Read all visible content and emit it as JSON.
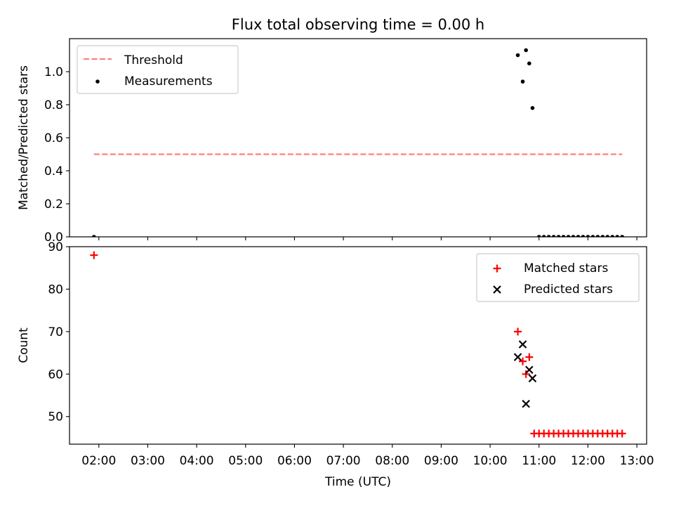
{
  "figure": {
    "title": "Flux total observing time = 0.00 h"
  },
  "chart_data": [
    {
      "type": "scatter",
      "ylabel": "Matched/Predicted stars",
      "xlabel": "",
      "xlim": [
        "01:24",
        "13:12"
      ],
      "ylim": [
        0,
        1.2
      ],
      "yticks": [
        0.0,
        0.2,
        0.4,
        0.6,
        0.8,
        1.0
      ],
      "ytick_labels": [
        "0.0",
        "0.2",
        "0.4",
        "0.6",
        "0.8",
        "1.0"
      ],
      "grid": false,
      "legend_position": "upper left",
      "threshold": {
        "name": "Threshold",
        "value": 0.5,
        "x_start": "01:54",
        "x_end": "12:42",
        "color": "#ff7f7f",
        "style": "dashed"
      },
      "series": [
        {
          "name": "Measurements",
          "marker": "dot",
          "color": "#000000",
          "points": [
            {
              "x": "01:54",
              "y": 0.0
            },
            {
              "x": "10:34",
              "y": 1.1
            },
            {
              "x": "10:40",
              "y": 0.94
            },
            {
              "x": "10:44",
              "y": 1.13
            },
            {
              "x": "10:48",
              "y": 1.05
            },
            {
              "x": "10:52",
              "y": 0.78
            },
            {
              "x": "11:00",
              "y": 0.0
            },
            {
              "x": "11:06",
              "y": 0.0
            },
            {
              "x": "11:12",
              "y": 0.0
            },
            {
              "x": "11:18",
              "y": 0.0
            },
            {
              "x": "11:24",
              "y": 0.0
            },
            {
              "x": "11:30",
              "y": 0.0
            },
            {
              "x": "11:36",
              "y": 0.0
            },
            {
              "x": "11:42",
              "y": 0.0
            },
            {
              "x": "11:48",
              "y": 0.0
            },
            {
              "x": "11:54",
              "y": 0.0
            },
            {
              "x": "12:00",
              "y": 0.0
            },
            {
              "x": "12:06",
              "y": 0.0
            },
            {
              "x": "12:12",
              "y": 0.0
            },
            {
              "x": "12:18",
              "y": 0.0
            },
            {
              "x": "12:24",
              "y": 0.0
            },
            {
              "x": "12:30",
              "y": 0.0
            },
            {
              "x": "12:36",
              "y": 0.0
            },
            {
              "x": "12:42",
              "y": 0.0
            }
          ]
        }
      ]
    },
    {
      "type": "scatter",
      "ylabel": "Count",
      "xlabel": "Time (UTC)",
      "xlim": [
        "01:24",
        "13:12"
      ],
      "ylim": [
        43.5,
        90
      ],
      "yticks": [
        50,
        60,
        70,
        80,
        90
      ],
      "ytick_labels": [
        "50",
        "60",
        "70",
        "80",
        "90"
      ],
      "xticks": [
        "02:00",
        "03:00",
        "04:00",
        "05:00",
        "06:00",
        "07:00",
        "08:00",
        "09:00",
        "10:00",
        "11:00",
        "12:00",
        "13:00"
      ],
      "xtick_labels": [
        "02:00",
        "03:00",
        "04:00",
        "05:00",
        "06:00",
        "07:00",
        "08:00",
        "09:00",
        "10:00",
        "11:00",
        "12:00",
        "13:00"
      ],
      "grid": false,
      "legend_position": "upper right",
      "series": [
        {
          "name": "Matched stars",
          "marker": "plus",
          "color": "#ff0000",
          "points": [
            {
              "x": "01:54",
              "y": 88
            },
            {
              "x": "10:34",
              "y": 70
            },
            {
              "x": "10:40",
              "y": 63
            },
            {
              "x": "10:44",
              "y": 60
            },
            {
              "x": "10:48",
              "y": 64
            },
            {
              "x": "10:54",
              "y": 46
            },
            {
              "x": "11:00",
              "y": 46
            },
            {
              "x": "11:06",
              "y": 46
            },
            {
              "x": "11:12",
              "y": 46
            },
            {
              "x": "11:18",
              "y": 46
            },
            {
              "x": "11:24",
              "y": 46
            },
            {
              "x": "11:30",
              "y": 46
            },
            {
              "x": "11:36",
              "y": 46
            },
            {
              "x": "11:42",
              "y": 46
            },
            {
              "x": "11:48",
              "y": 46
            },
            {
              "x": "11:54",
              "y": 46
            },
            {
              "x": "12:00",
              "y": 46
            },
            {
              "x": "12:06",
              "y": 46
            },
            {
              "x": "12:12",
              "y": 46
            },
            {
              "x": "12:18",
              "y": 46
            },
            {
              "x": "12:24",
              "y": 46
            },
            {
              "x": "12:30",
              "y": 46
            },
            {
              "x": "12:36",
              "y": 46
            },
            {
              "x": "12:42",
              "y": 46
            }
          ]
        },
        {
          "name": "Predicted stars",
          "marker": "x",
          "color": "#000000",
          "points": [
            {
              "x": "10:34",
              "y": 64
            },
            {
              "x": "10:40",
              "y": 67
            },
            {
              "x": "10:44",
              "y": 53
            },
            {
              "x": "10:48",
              "y": 61
            },
            {
              "x": "10:52",
              "y": 59
            }
          ]
        }
      ]
    }
  ]
}
